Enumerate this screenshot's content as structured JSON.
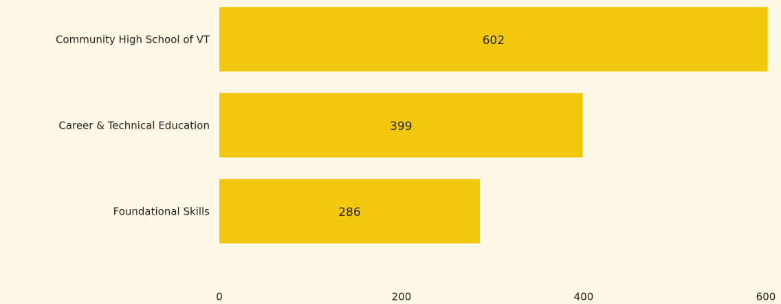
{
  "chart_data": {
    "type": "barh",
    "categories": [
      "Community High School of VT",
      "Career & Technical Education",
      "Foundational Skills"
    ],
    "values": [
      602,
      399,
      286
    ],
    "color": "#f2c80f",
    "xlim": [
      0,
      600
    ],
    "xticks": [
      0,
      200,
      400,
      600
    ],
    "grid": false
  }
}
